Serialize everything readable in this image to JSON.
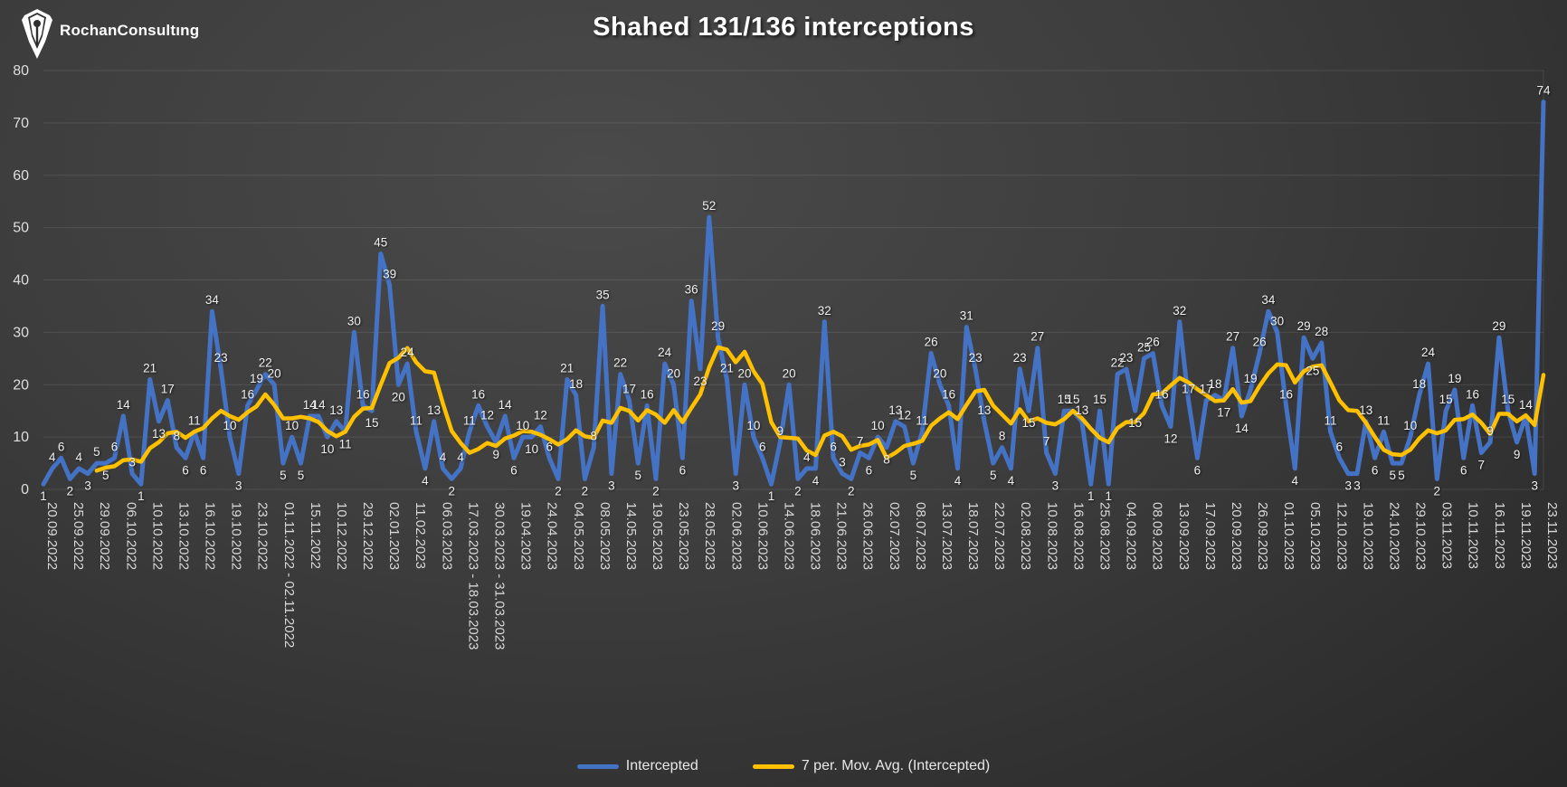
{
  "header": {
    "logo_text": "RochanConsultıng",
    "title": "Shahed 131/136 interceptions"
  },
  "legend": {
    "intercepted": "Intercepted",
    "moving_avg": "7 per. Mov. Avg. (Intercepted)"
  },
  "colors": {
    "intercepted": "#4472c4",
    "moving_avg": "#ffc000",
    "gridline": "rgba(255,255,255,0.10)",
    "axis_text": "#d8d8d8",
    "label_text": "#efefef"
  },
  "chart_data": {
    "type": "line",
    "title": "Shahed 131/136 interceptions",
    "ylim": [
      0,
      80
    ],
    "yticks": [
      0,
      10,
      20,
      30,
      40,
      50,
      60,
      70,
      80
    ],
    "grid": true,
    "legend_position": "bottom",
    "x_tick_labels": [
      "20.09.2022",
      "25.09.2022",
      "29.09.2022",
      "06.10.2022",
      "10.10.2022",
      "13.10.2022",
      "16.10.2022",
      "19.10.2022",
      "23.10.2022",
      "01.11.2022 - 02.11.2022",
      "15.11.2022",
      "10.12.2022",
      "29.12.2022",
      "02.01.2023",
      "11.02.2023",
      "06.03.2023",
      "17.03.2023 - 18.03.2023",
      "30.03.2023 - 31.03.2023",
      "19.04.2023",
      "24.04.2023",
      "04.05.2023",
      "08.05.2023",
      "14.05.2023",
      "19.05.2023",
      "23.05.2023",
      "28.05.2023",
      "02.06.2023",
      "10.06.2023",
      "14.06.2023",
      "18.06.2023",
      "21.06.2023",
      "26.06.2023",
      "02.07.2023",
      "08.07.2023",
      "13.07.2023",
      "18.07.2023",
      "22.07.2023",
      "02.08.2023",
      "10.08.2023",
      "16.08.2023",
      "25.08.2023",
      "04.09.2023",
      "08.09.2023",
      "13.09.2023",
      "17.09.2023",
      "20.09.2023",
      "26.09.2023",
      "01.10.2023",
      "05.10.2023",
      "12.10.2023",
      "19.10.2023",
      "24.10.2023",
      "29.10.2023",
      "03.11.2023",
      "10.11.2023",
      "16.11.2023",
      "19.11.2023",
      "23.11.2023"
    ],
    "series": [
      {
        "name": "Intercepted",
        "type": "line",
        "color": "#4472c4",
        "data_labels": true,
        "values": [
          1,
          4,
          6,
          2,
          4,
          3,
          5,
          5,
          6,
          14,
          3,
          1,
          21,
          13,
          17,
          8,
          6,
          11,
          6,
          34,
          23,
          10,
          3,
          16,
          19,
          22,
          20,
          5,
          10,
          5,
          14,
          14,
          10,
          13,
          11,
          30,
          16,
          15,
          45,
          39,
          20,
          24,
          11,
          4,
          13,
          4,
          2,
          4,
          11,
          16,
          12,
          9,
          14,
          6,
          10,
          10,
          12,
          6,
          2,
          21,
          18,
          2,
          8,
          35,
          3,
          22,
          17,
          5,
          16,
          2,
          24,
          20,
          6,
          36,
          23,
          52,
          29,
          21,
          3,
          20,
          10,
          6,
          1,
          9,
          20,
          2,
          4,
          4,
          32,
          6,
          3,
          2,
          7,
          6,
          10,
          8,
          13,
          12,
          5,
          11,
          26,
          20,
          16,
          4,
          31,
          23,
          13,
          5,
          8,
          4,
          23,
          15,
          27,
          7,
          3,
          15,
          15,
          13,
          1,
          15,
          1,
          22,
          23,
          15,
          25,
          26,
          16,
          12,
          32,
          17,
          6,
          17,
          18,
          17,
          27,
          14,
          19,
          26,
          34,
          30,
          16,
          4,
          29,
          25,
          28,
          11,
          6,
          3,
          3,
          13,
          6,
          11,
          5,
          5,
          10,
          18,
          24,
          2,
          15,
          19,
          6,
          16,
          7,
          9,
          29,
          15,
          9,
          14,
          3,
          74
        ]
      },
      {
        "name": "7 per. Mov. Avg. (Intercepted)",
        "type": "moving_average",
        "window": 7,
        "color": "#ffc000"
      }
    ]
  }
}
